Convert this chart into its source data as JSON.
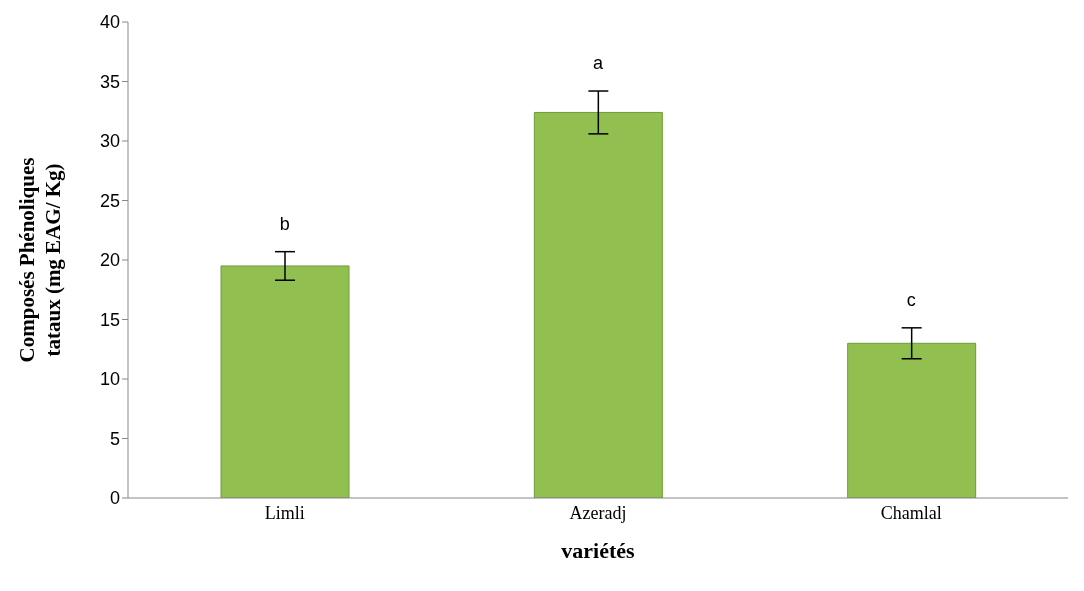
{
  "chart_data": {
    "type": "bar",
    "xlabel": "variétés",
    "ylabel": "Composés Phénoliques tataux (mg EAG/ Kg)",
    "categories": [
      "Limli",
      "Azeradj",
      "Chamlal"
    ],
    "values": [
      19.5,
      32.4,
      13.0
    ],
    "errors": [
      1.2,
      1.8,
      1.3
    ],
    "color": "#92c050",
    "ylim": [
      0,
      40
    ],
    "yticks": [
      0,
      5,
      10,
      15,
      20,
      25,
      30,
      35,
      40
    ],
    "grid": false,
    "legend": false,
    "annotations": [
      "b",
      "a",
      "c"
    ]
  }
}
